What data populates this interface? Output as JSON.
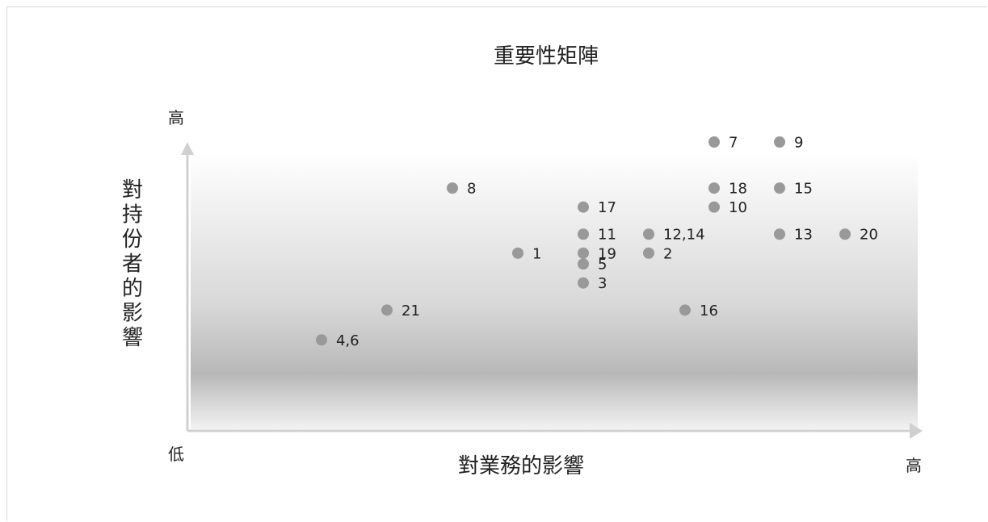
{
  "chart_data": {
    "type": "scatter",
    "title": "重要性矩陣",
    "xlabel": "對業務的影響",
    "ylabel": "對持份者的影響",
    "x_low_label": "低",
    "x_high_label": "高",
    "y_high_label": "高",
    "xlim": [
      0,
      10
    ],
    "ylim": [
      0,
      10
    ],
    "grid": false,
    "legend": "none",
    "colors": {
      "point": "#999999",
      "axis": "#d0d0d0",
      "gradient_top": "#ffffff",
      "gradient_mid": "#b8b8b8",
      "gradient_bottom": "#f2f2f2"
    },
    "points": [
      {
        "label": "7",
        "x": 7.2,
        "y": 10.0
      },
      {
        "label": "9",
        "x": 8.1,
        "y": 10.0
      },
      {
        "label": "8",
        "x": 3.6,
        "y": 8.3
      },
      {
        "label": "18",
        "x": 7.2,
        "y": 8.3
      },
      {
        "label": "15",
        "x": 8.1,
        "y": 8.3
      },
      {
        "label": "17",
        "x": 5.4,
        "y": 7.6
      },
      {
        "label": "10",
        "x": 7.2,
        "y": 7.6
      },
      {
        "label": "11",
        "x": 5.4,
        "y": 6.6
      },
      {
        "label": "12,14",
        "x": 6.3,
        "y": 6.6
      },
      {
        "label": "13",
        "x": 8.1,
        "y": 6.6
      },
      {
        "label": "20",
        "x": 9.0,
        "y": 6.6
      },
      {
        "label": "1",
        "x": 4.5,
        "y": 5.9
      },
      {
        "label": "19",
        "x": 5.4,
        "y": 5.9
      },
      {
        "label": "2",
        "x": 6.3,
        "y": 5.9
      },
      {
        "label": "5",
        "x": 5.4,
        "y": 5.5
      },
      {
        "label": "3",
        "x": 5.4,
        "y": 4.8
      },
      {
        "label": "21",
        "x": 2.7,
        "y": 3.8
      },
      {
        "label": "16",
        "x": 6.8,
        "y": 3.8
      },
      {
        "label": "4,6",
        "x": 1.8,
        "y": 2.7
      }
    ]
  }
}
